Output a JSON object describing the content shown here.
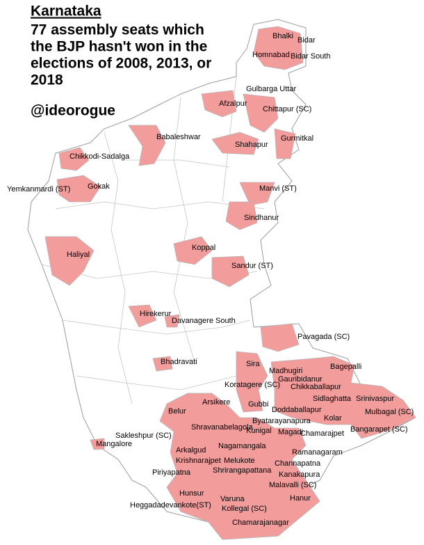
{
  "header": {
    "title": "Karnataka",
    "subtitle_lines": [
      "77 assembly seats which",
      "the BJP hasn't won in the",
      "elections of 2008, 2013, or",
      "2018"
    ],
    "handle": "@ideorogue"
  },
  "labels": [
    "Bhalki",
    "Bidar",
    "Homnabad",
    "Bidar South",
    "Gulbarga Uttar",
    "Afzalpur",
    "Chittapur (SC)",
    "Babaleshwar",
    "Shahapur",
    "Gurmitkal",
    "Chikkodi-Sadalga",
    "Yemkanmardi (ST)",
    "Gokak",
    "Manvi (ST)",
    "Sindhanur",
    "Haliyal",
    "Koppal",
    "Sandur (ST)",
    "Hirekerur",
    "Davanagere South",
    "Pavagada (SC)",
    "Bhadravati",
    "Sira",
    "Madhugiri",
    "Bagepalli",
    "Gauribidanur",
    "Koratagere (SC)",
    "Chikkaballapur",
    "Sidlaghatta",
    "Srinivaspur",
    "Arsikere",
    "Gubbi",
    "Doddaballapur",
    "Mulbagal (SC)",
    "Belur",
    "Byatarayanapura",
    "Kolar",
    "Shravanabelagola",
    "Kunigal",
    "Magadi",
    "Chamarajpet",
    "Bangarapet (SC)",
    "Sakleshpur (SC)",
    "Mangalore",
    "Arkalgud",
    "Nagamangala",
    "Ramanagaram",
    "Krishnarajpet",
    "Melukote",
    "Shrirangapattana",
    "Channapatna",
    "Piriyapatna",
    "Kanakapura",
    "Malavalli (SC)",
    "Hunsur",
    "Hanur",
    "Heggadadevankote(ST)",
    "Varuna",
    "Kollegal (SC)",
    "Chamarajanagar"
  ]
}
